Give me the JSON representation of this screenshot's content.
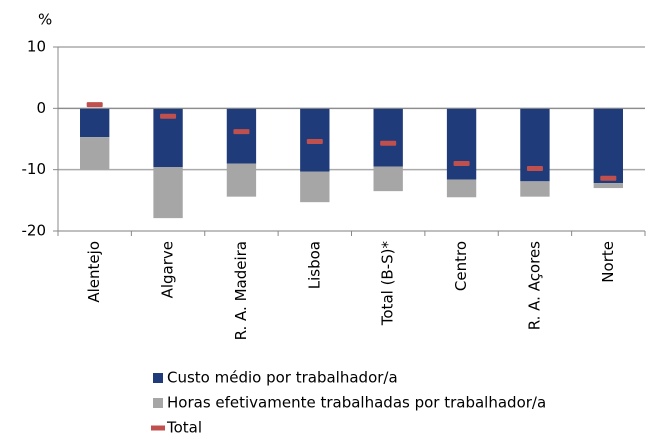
{
  "chart_data": {
    "type": "bar",
    "stacked": true,
    "y_unit": "%",
    "categories": [
      "Alentejo",
      "Algarve",
      "R. A. Madeira",
      "Lisboa",
      "Total (B-S)*",
      "Centro",
      "R. A. Açores",
      "Norte"
    ],
    "series": [
      {
        "name": "Custo médio por trabalhador/a",
        "color": "#1f3b7a",
        "style": "bar",
        "values": [
          -4.7,
          -9.6,
          -9.0,
          -10.3,
          -9.5,
          -11.6,
          -11.9,
          -12.2
        ]
      },
      {
        "name": "Horas efetivamente trabalhadas por trabalhador/a",
        "color": "#a6a6a6",
        "style": "bar",
        "values": [
          -5.3,
          -8.3,
          -5.4,
          -5.0,
          -4.0,
          -2.9,
          -2.5,
          -0.8
        ]
      },
      {
        "name": "Total",
        "color": "#c0504d",
        "style": "dash",
        "values": [
          0.6,
          -1.3,
          -3.8,
          -5.4,
          -5.7,
          -9.0,
          -9.8,
          -11.4
        ]
      }
    ],
    "ylim": [
      -20,
      10
    ],
    "yticks": [
      -20,
      -10,
      0,
      10
    ],
    "grid": true
  }
}
